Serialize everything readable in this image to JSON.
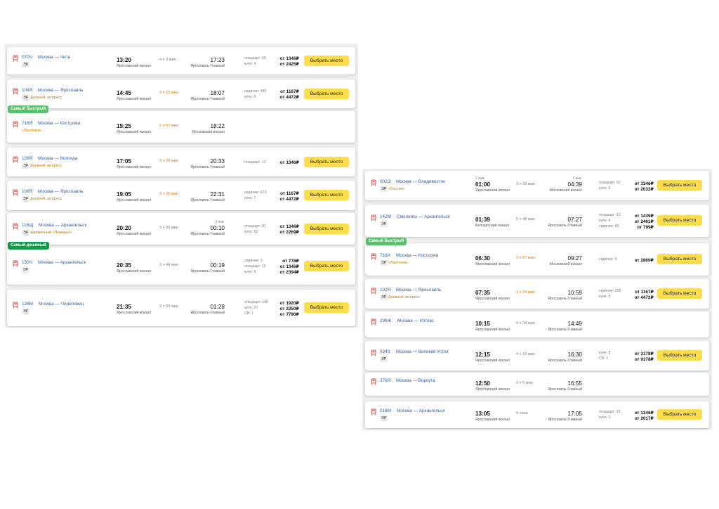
{
  "left_panel": {
    "trains": [
      {
        "badge": "",
        "number": "070Ч",
        "route": "Москва — Чита",
        "tag": "ЭР",
        "subtitle": "",
        "dep_date": "",
        "dep_time": "13:20",
        "dep_station": "Ярославский вокзал",
        "duration": "4 ч 3 мин",
        "duration_fast": false,
        "arr_date": "",
        "arr_time": "17:23",
        "arr_station": "Ярославль-Главный",
        "classes": [
          "плацкарт: 69",
          "купе: 4"
        ],
        "prices": [
          "от 1346₽",
          "от 2425₽"
        ],
        "button": "Выбрать место"
      },
      {
        "badge": "",
        "number": "104Я",
        "route": "Москва — Ярославль",
        "tag": "ЭР",
        "subtitle": "Дневной экспресс",
        "dep_date": "",
        "dep_time": "14:45",
        "dep_station": "Ярославский вокзал",
        "duration": "3 ч 22 мин",
        "duration_fast": true,
        "arr_date": "",
        "arr_time": "18:07",
        "arr_station": "Ярославль-Главный",
        "classes": [
          "сидячие: 485",
          "купе: 8"
        ],
        "prices": [
          "от 1167₽",
          "от 4472₽"
        ],
        "button": "Выбрать место"
      },
      {
        "badge": "Самый быстрый",
        "badge_color": "green",
        "number": "716Я",
        "route": "Москва — Кострома",
        "tag": "",
        "subtitle": "«Ласточка»",
        "dep_date": "",
        "dep_time": "15:25",
        "dep_station": "Ярославский вокзал",
        "duration": "2 ч 57 мин",
        "duration_fast": true,
        "arr_date": "",
        "arr_time": "18:22",
        "arr_station": "Московский вокзал",
        "classes": [],
        "prices": [],
        "button": ""
      },
      {
        "badge": "",
        "number": "108Я",
        "route": "Москва — Вологда",
        "tag": "ЭР",
        "subtitle": "Дневной экспресс",
        "dep_date": "",
        "dep_time": "17:05",
        "dep_station": "Ярославский вокзал",
        "duration": "3 ч 28 мин",
        "duration_fast": true,
        "arr_date": "",
        "arr_time": "20:33",
        "arr_station": "Ярославль-Главный",
        "classes": [
          "плацкарт: 12"
        ],
        "prices": [
          "от 1346₽"
        ],
        "button": "Выбрать место"
      },
      {
        "badge": "",
        "number": "106Я",
        "route": "Москва — Ярославль",
        "tag": "ЭР",
        "subtitle": "Дневной экспресс",
        "dep_date": "",
        "dep_time": "19:05",
        "dep_station": "Ярославский вокзал",
        "duration": "3 ч 26 мин",
        "duration_fast": true,
        "arr_date": "",
        "arr_time": "22:31",
        "arr_station": "Ярославль-Главный",
        "classes": [
          "сидячие: 673",
          "купе: 7"
        ],
        "prices": [
          "от 1167₽",
          "от 4472₽"
        ],
        "button": "Выбрать место"
      },
      {
        "badge": "",
        "number": "116Щ",
        "route": "Москва — Архангельск",
        "tag": "ЭР",
        "subtitle": "фирменный «Поморье»",
        "dep_date": "",
        "dep_time": "20:20",
        "dep_station": "Ярославский вокзал",
        "duration": "3 ч 50 мин",
        "duration_fast": false,
        "arr_date": "3 янв.",
        "arr_time": "00:10",
        "arr_station": "Ярославль-Главный",
        "classes": [
          "плацкарт: 81",
          "купе: 52"
        ],
        "prices": [
          "от 1346₽",
          "от 2269₽"
        ],
        "button": "Выбрать место"
      },
      {
        "badge": "Самый дешевый",
        "badge_color": "dark",
        "number": "130Ч",
        "route": "Москва — Архангельск",
        "tag": "ЭР",
        "subtitle": "",
        "dep_date": "",
        "dep_time": "20:35",
        "dep_station": "Ярославский вокзал",
        "duration": "3 ч 44 мин",
        "duration_fast": false,
        "arr_date": "",
        "arr_time": "00:19",
        "arr_station": "Ярославль-Главный",
        "classes": [
          "сидячие: 3",
          "плацкарт: 16",
          "купе: 9"
        ],
        "prices": [
          "от 778₽",
          "от 1346₽",
          "от 2394₽"
        ],
        "button": "Выбрать место"
      },
      {
        "badge": "",
        "number": "126М",
        "route": "Москва — Череповец",
        "tag": "ЭР",
        "subtitle": "",
        "dep_date": "",
        "dep_time": "21:35",
        "dep_station": "Ярославский вокзал",
        "duration": "3 ч 53 мин",
        "duration_fast": false,
        "arr_date": "",
        "arr_time": "01:28",
        "arr_station": "Ярославль-Главный",
        "classes": [
          "плацкарт: 148",
          "купе: 37",
          "СВ: 1"
        ],
        "prices": [
          "от 1920₽",
          "от 2250₽",
          "от 7790₽"
        ],
        "button": "Выбрать место"
      }
    ]
  },
  "right_panel": {
    "trains": [
      {
        "badge": "",
        "number": "002Э",
        "route": "Москва — Владивосток",
        "tag": "ЭР",
        "subtitle": "«Россия»",
        "dep_date": "2 янв.",
        "dep_time": "01:00",
        "dep_station": "Ярославский вокзал",
        "duration": "3 ч 39 мин",
        "duration_fast": false,
        "arr_date": "2 янв.",
        "arr_time": "04:39",
        "arr_station": "Московский вокзал",
        "classes": [
          "плацкарт: 62",
          "купе: 6"
        ],
        "prices": [
          "от 1346₽",
          "от 2032₽"
        ],
        "button": "Выбрать место"
      },
      {
        "badge": "",
        "number": "142М",
        "route": "Смоленск — Архангельск",
        "tag": "ЭР",
        "subtitle": "",
        "dep_date": "",
        "dep_time": "01:39",
        "dep_station": "Белорусский вокзал",
        "duration": "5 ч 48 мин",
        "duration_fast": false,
        "arr_date": "",
        "arr_time": "07:27",
        "arr_station": "Ярославль-Главный",
        "classes": [
          "плацкарт: 13",
          "купе: 4",
          "сидячие: 49"
        ],
        "prices": [
          "от 1439₽",
          "от 2461₽",
          "от 799₽"
        ],
        "button": "Выбрать место"
      },
      {
        "badge": "Самый быстрый",
        "badge_color": "green",
        "number": "718А",
        "route": "Москва — Кострома",
        "tag": "ЭР",
        "subtitle": "«Ласточка»",
        "dep_date": "",
        "dep_time": "06:30",
        "dep_station": "Ярославский вокзал",
        "duration": "2 ч 57 мин",
        "duration_fast": true,
        "arr_date": "",
        "arr_time": "09:27",
        "arr_station": "Московский вокзал",
        "classes": [
          "сидячие: 9"
        ],
        "prices": [
          "от 2860₽"
        ],
        "button": "Выбрать место"
      },
      {
        "badge": "",
        "number": "102Я",
        "route": "Москва — Ярославль",
        "tag": "ЭР",
        "subtitle": "Дневной экспресс",
        "dep_date": "",
        "dep_time": "07:35",
        "dep_station": "Ярославский вокзал",
        "duration": "3 ч 24 мин",
        "duration_fast": true,
        "arr_date": "",
        "arr_time": "10:59",
        "arr_station": "Ярославль-Главный",
        "classes": [
          "сидячие: 258",
          "купе: 8"
        ],
        "prices": [
          "от 1167₽",
          "от 4472₽"
        ],
        "button": "Выбрать место"
      },
      {
        "badge": "",
        "number": "296Ж",
        "route": "Москва — Котлас",
        "tag": "",
        "subtitle": "",
        "dep_date": "",
        "dep_time": "10:15",
        "dep_station": "Ярославский вокзал",
        "duration": "4 ч 34 мин",
        "duration_fast": false,
        "arr_date": "",
        "arr_time": "14:49",
        "arr_station": "Ярославль-Главный",
        "classes": [],
        "prices": [],
        "button": ""
      },
      {
        "badge": "",
        "number": "934З",
        "route": "Москва — Великий Устюг",
        "tag": "ЭР",
        "subtitle": "",
        "dep_date": "",
        "dep_time": "12:15",
        "dep_station": "Ярославский вокзал",
        "duration": "4 ч 15 мин",
        "duration_fast": false,
        "arr_date": "",
        "arr_time": "16:30",
        "arr_station": "Ярославль-Главный",
        "classes": [
          "купе: 8",
          "СВ: 1"
        ],
        "prices": [
          "от 3178₽",
          "от 9378₽"
        ],
        "button": "Выбрать место"
      },
      {
        "badge": "",
        "number": "376Я",
        "route": "Москва — Воркута",
        "tag": "",
        "subtitle": "",
        "dep_date": "",
        "dep_time": "12:50",
        "dep_station": "Ярославский вокзал",
        "duration": "4 ч 5 мин",
        "duration_fast": false,
        "arr_date": "",
        "arr_time": "16:55",
        "arr_station": "Ярославль-Главный",
        "classes": [],
        "prices": [],
        "button": ""
      },
      {
        "badge": "",
        "number": "016М",
        "route": "Москва — Архангельск",
        "tag": "ЭР",
        "subtitle": "",
        "dep_date": "",
        "dep_time": "13:05",
        "dep_station": "Ярославский вокзал",
        "duration": "4 часа",
        "duration_fast": false,
        "arr_date": "",
        "arr_time": "17:05",
        "arr_station": "Ярославль-Главный",
        "classes": [
          "плацкарт: 15",
          "купе: 3"
        ],
        "prices": [
          "от 1346₽",
          "от 2017₽"
        ],
        "button": "Выбрать место"
      }
    ]
  },
  "colors": {
    "link": "#2f5a9c",
    "accent_button": "#fcdc4d",
    "fast": "#c9780a",
    "badge_fast": "#5cbf6f",
    "badge_cheap": "#17964e",
    "train_icon": "#d9534f"
  }
}
